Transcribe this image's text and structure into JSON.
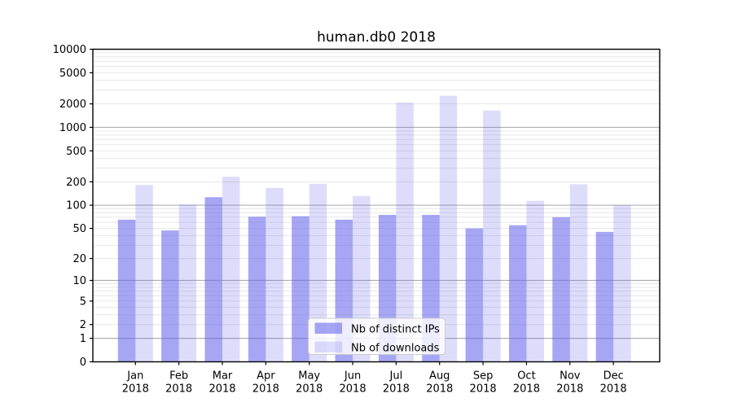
{
  "figure": {
    "background": "#ffffff"
  },
  "chart_data": {
    "type": "bar",
    "title": "human.db0 2018",
    "categories": [
      "Jan",
      "Feb",
      "Mar",
      "Apr",
      "May",
      "Jun",
      "Jul",
      "Aug",
      "Sep",
      "Oct",
      "Nov",
      "Dec"
    ],
    "category_year": "2018",
    "series": [
      {
        "name": "Nb of distinct IPs",
        "color": "rgba(102,102,238,0.58)",
        "values": [
          65,
          47,
          127,
          71,
          72,
          65,
          75,
          75,
          50,
          55,
          70,
          45
        ]
      },
      {
        "name": "Nb of downloads",
        "color": "rgba(102,102,238,0.22)",
        "values": [
          182,
          102,
          233,
          167,
          189,
          132,
          2080,
          2540,
          1640,
          114,
          186,
          100
        ]
      }
    ],
    "yscale": "log1p-symlog-like",
    "ylim": [
      0,
      10000
    ],
    "y_ticks": [
      0,
      1,
      2,
      5,
      10,
      20,
      50,
      100,
      200,
      500,
      1000,
      2000,
      5000,
      10000
    ],
    "grid": true,
    "grid_major_values": [
      1,
      10,
      100,
      1000,
      10000
    ],
    "grid_minor_pattern": "2-9 per decade",
    "legend_position": "lower center inside plot",
    "xlabel": "",
    "ylabel": ""
  },
  "colors": {
    "background": "#ffffff",
    "axis": "#000000",
    "text": "#000000",
    "grid_major": "#b0b0b0",
    "grid_minor": "#e7e7e7",
    "legend_border": "#cccccc",
    "legend_background": "rgba(255,255,255,0.8)"
  }
}
